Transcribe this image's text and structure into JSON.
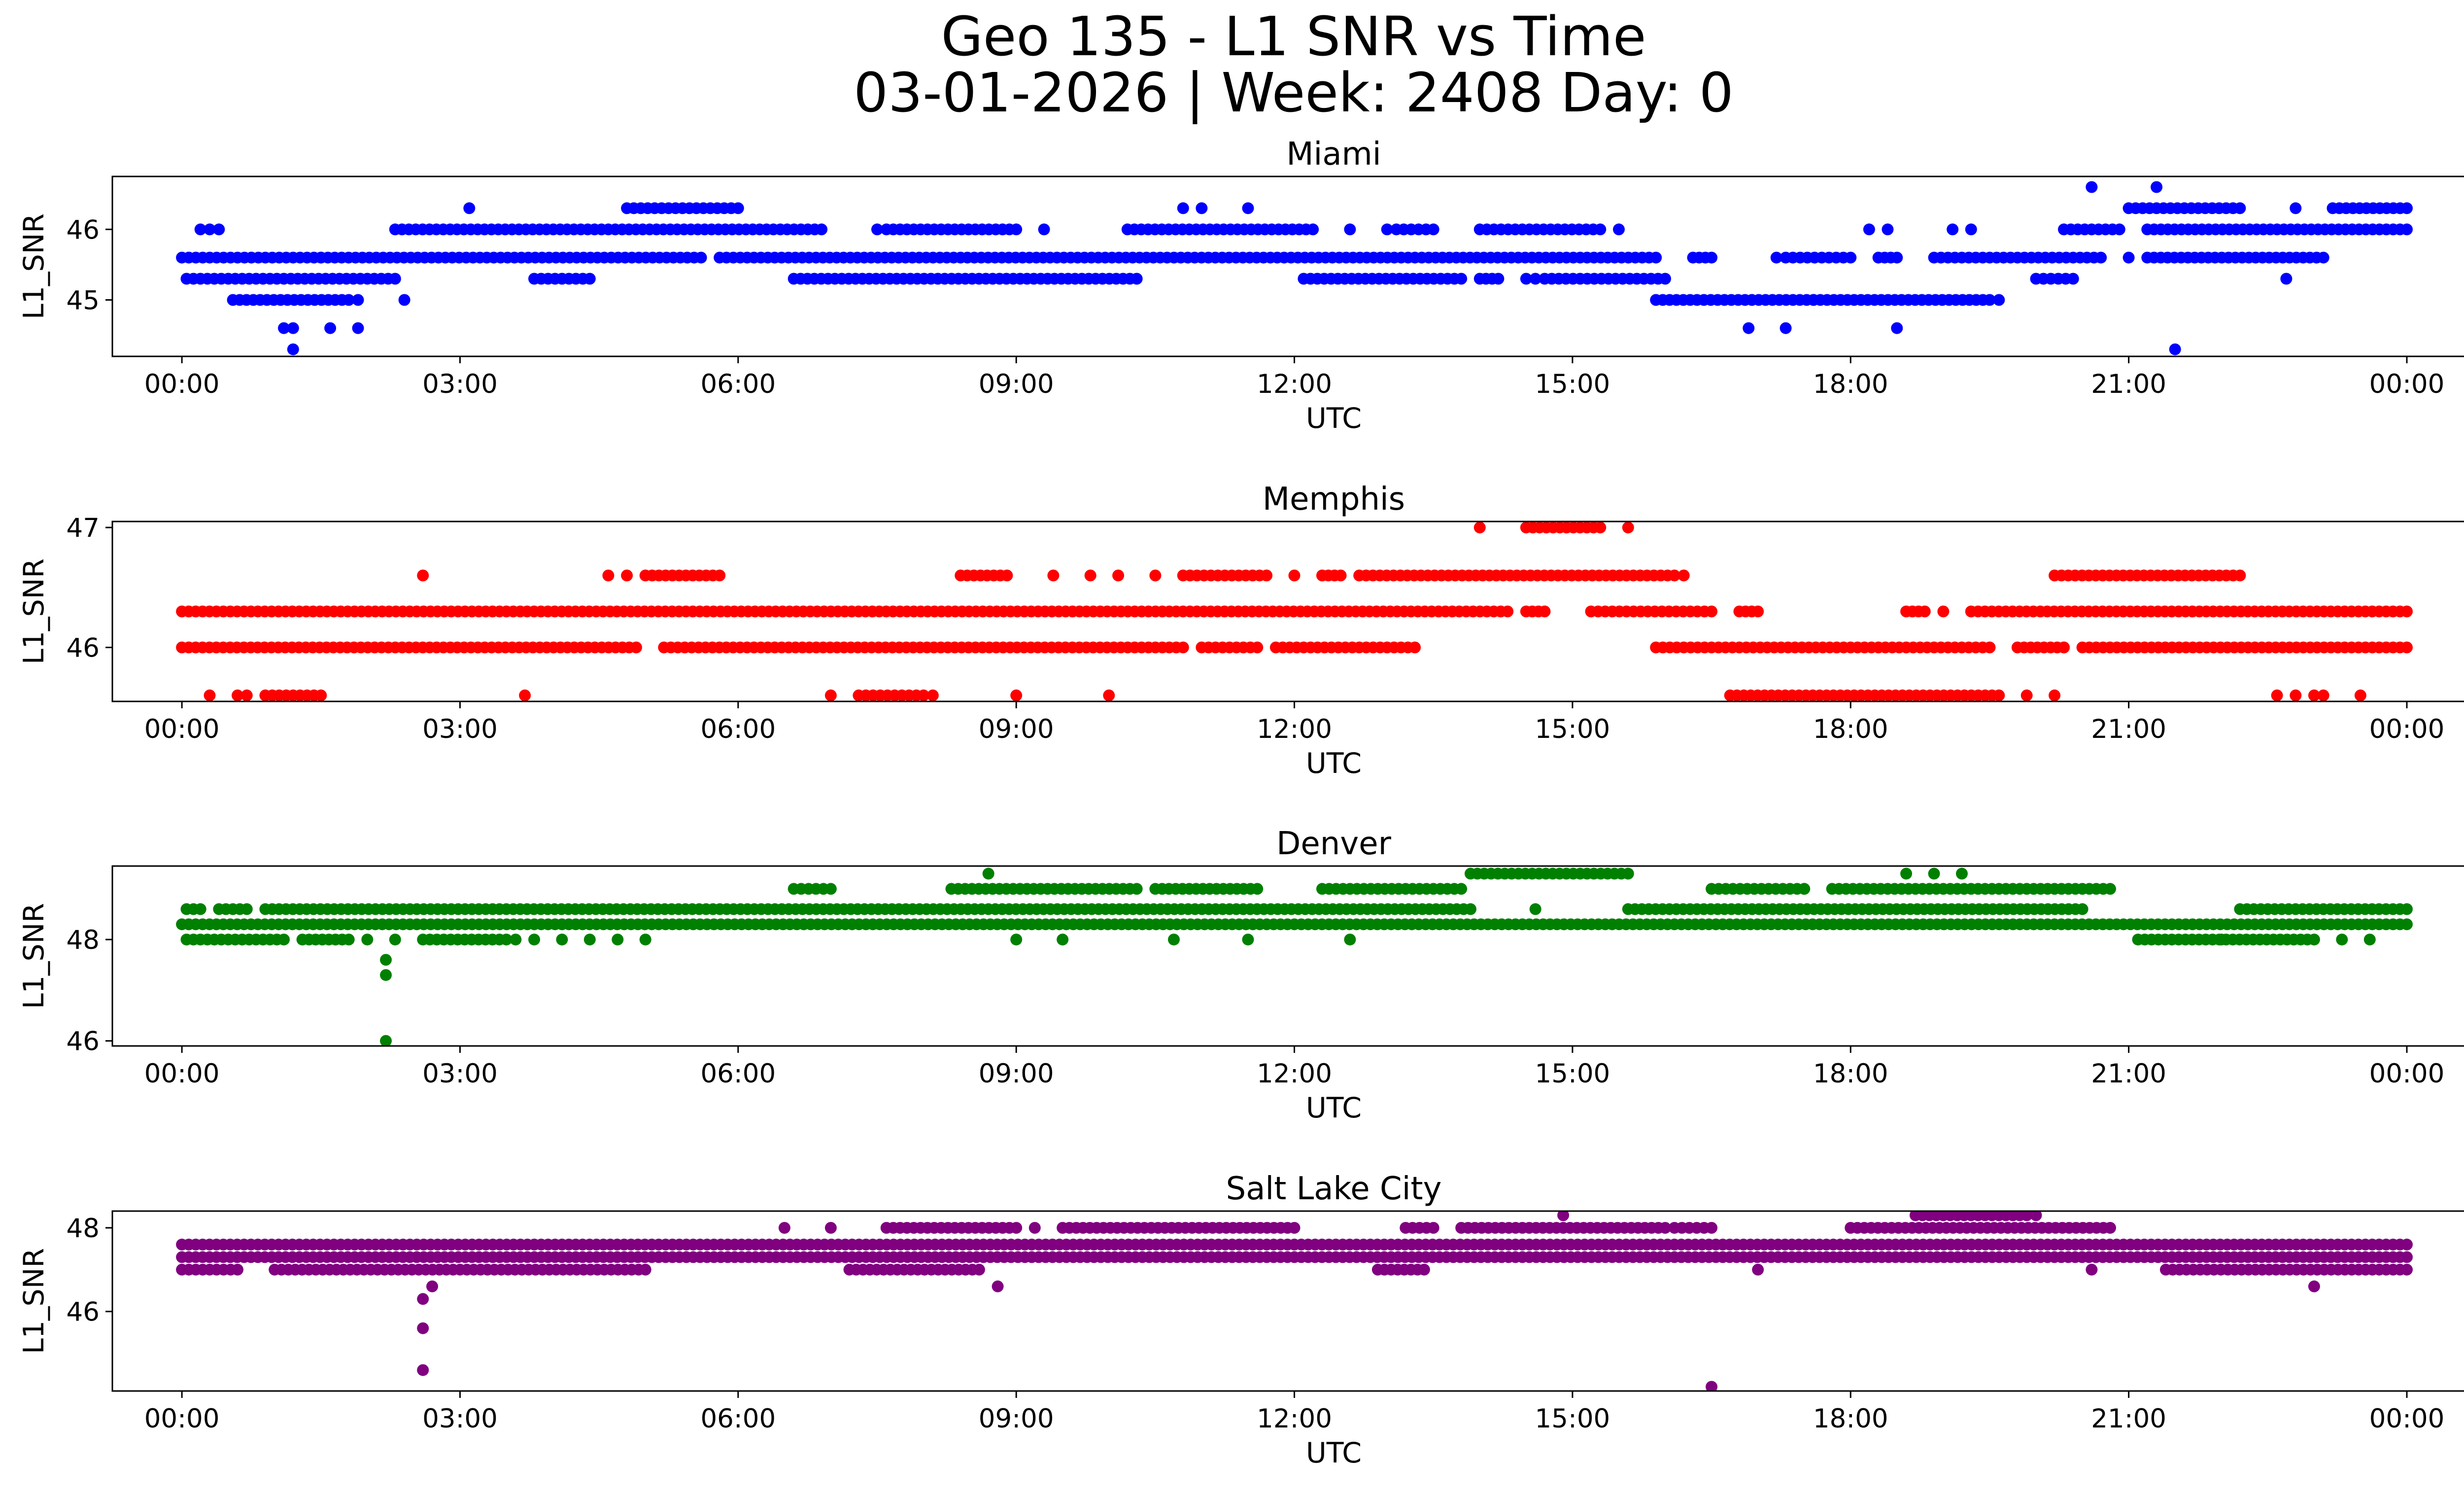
{
  "chart_data": {
    "type": "scatter",
    "title": [
      "Geo 135 - L1 SNR vs Time",
      "03-01-2026 | Week: 2408 Day: 0"
    ],
    "xlabel": "UTC",
    "ylabel": "L1_SNR",
    "x_unit": "hours UTC",
    "xlim": [
      -0.75,
      25.6
    ],
    "x_ticks": [
      0,
      3,
      6,
      9,
      12,
      15,
      18,
      21,
      24
    ],
    "x_ticklabels": [
      "00:00",
      "03:00",
      "06:00",
      "09:00",
      "12:00",
      "15:00",
      "18:00",
      "21:00",
      "00:00"
    ],
    "panels": [
      {
        "name": "Miami",
        "color": "#0000ff",
        "ylim": [
          44.2,
          46.75
        ],
        "y_ticks": [
          45,
          46
        ],
        "bands": [
          {
            "y": 45.6,
            "segments": [
              [
                0,
                1.5
              ],
              [
                1.5,
                5.6
              ],
              [
                5.8,
                15.9
              ],
              [
                16.3,
                16.5
              ],
              [
                17.3,
                18.0
              ],
              [
                18.3,
                18.5
              ],
              [
                18.9,
                20.7
              ],
              [
                21.2,
                23.1
              ]
            ]
          },
          {
            "y": 45.3,
            "segments": [
              [
                0.05,
                2.3
              ],
              [
                3.8,
                4.4
              ],
              [
                6.6,
                10.3
              ],
              [
                12.1,
                13.8
              ],
              [
                14.0,
                14.2
              ],
              [
                14.5,
                14.6
              ],
              [
                14.7,
                16.0
              ],
              [
                20.0,
                20.4
              ]
            ]
          },
          {
            "y": 46.0,
            "segments": [
              [
                2.3,
                6.9
              ],
              [
                7.6,
                9.0
              ],
              [
                10.2,
                12.2
              ],
              [
                13.1,
                13.5
              ],
              [
                14.0,
                15.3
              ],
              [
                20.3,
                20.9
              ],
              [
                21.2,
                24.0
              ]
            ]
          },
          {
            "y": 45.0,
            "segments": [
              [
                0.55,
                1.8
              ],
              [
                15.9,
                17.6
              ],
              [
                17.6,
                19.5
              ]
            ]
          },
          {
            "y": 46.3,
            "segments": [
              [
                4.8,
                6.0
              ],
              [
                21.0,
                22.2
              ],
              [
                23.2,
                24.0
              ]
            ]
          }
        ],
        "points": [
          [
            0.2,
            46.0
          ],
          [
            0.3,
            46.0
          ],
          [
            0.4,
            46.0
          ],
          [
            3.1,
            46.3
          ],
          [
            1.1,
            44.6
          ],
          [
            1.2,
            44.6
          ],
          [
            1.2,
            44.3
          ],
          [
            1.6,
            44.6
          ],
          [
            1.9,
            44.6
          ],
          [
            1.9,
            45.0
          ],
          [
            2.4,
            45.0
          ],
          [
            7.5,
            46.0
          ],
          [
            9.3,
            46.0
          ],
          [
            10.8,
            46.3
          ],
          [
            11.0,
            46.3
          ],
          [
            11.5,
            46.3
          ],
          [
            12.6,
            46.0
          ],
          [
            13.0,
            46.0
          ],
          [
            15.5,
            46.0
          ],
          [
            16.9,
            44.6
          ],
          [
            17.3,
            44.6
          ],
          [
            18.5,
            44.6
          ],
          [
            17.2,
            45.6
          ],
          [
            18.2,
            46.0
          ],
          [
            18.4,
            46.0
          ],
          [
            19.1,
            46.0
          ],
          [
            19.3,
            46.0
          ],
          [
            19.6,
            45.0
          ],
          [
            20.6,
            46.6
          ],
          [
            21.3,
            46.6
          ],
          [
            21.5,
            44.3
          ],
          [
            21.0,
            45.6
          ],
          [
            22.7,
            45.3
          ],
          [
            22.8,
            46.3
          ]
        ]
      },
      {
        "name": "Memphis",
        "color": "#ff0000",
        "ylim": [
          45.55,
          47.05
        ],
        "y_ticks": [
          46,
          47
        ],
        "bands": [
          {
            "y": 46.3,
            "segments": [
              [
                0,
                14.3
              ],
              [
                14.5,
                14.7
              ],
              [
                15.2,
                16.5
              ],
              [
                16.8,
                17.0
              ],
              [
                18.6,
                18.8
              ],
              [
                19.3,
                24.0
              ]
            ]
          },
          {
            "y": 46.0,
            "segments": [
              [
                0,
                4.9
              ],
              [
                5.2,
                10.8
              ],
              [
                11.0,
                11.6
              ],
              [
                11.8,
                13.3
              ],
              [
                15.9,
                19.5
              ],
              [
                19.8,
                20.3
              ],
              [
                20.5,
                24.0
              ]
            ]
          },
          {
            "y": 46.6,
            "segments": [
              [
                5.0,
                5.8
              ],
              [
                8.4,
                8.9
              ],
              [
                10.8,
                11.7
              ],
              [
                12.3,
                12.5
              ],
              [
                12.7,
                16.1
              ],
              [
                20.2,
                22.2
              ]
            ]
          },
          {
            "y": 45.6,
            "segments": [
              [
                16.7,
                19.6
              ],
              [
                7.3,
                8.0
              ],
              [
                0.9,
                1.5
              ]
            ]
          },
          {
            "y": 47.0,
            "segments": [
              [
                14.5,
                15.3
              ]
            ]
          }
        ],
        "points": [
          [
            0.3,
            45.6
          ],
          [
            0.6,
            45.6
          ],
          [
            0.7,
            45.6
          ],
          [
            2.6,
            46.6
          ],
          [
            3.7,
            45.6
          ],
          [
            4.6,
            46.6
          ],
          [
            4.8,
            46.6
          ],
          [
            7.0,
            45.6
          ],
          [
            8.1,
            45.6
          ],
          [
            9.0,
            45.6
          ],
          [
            10.0,
            45.6
          ],
          [
            9.4,
            46.6
          ],
          [
            9.8,
            46.6
          ],
          [
            10.1,
            46.6
          ],
          [
            10.5,
            46.6
          ],
          [
            12.0,
            46.6
          ],
          [
            14.0,
            47.0
          ],
          [
            15.6,
            47.0
          ],
          [
            16.2,
            46.6
          ],
          [
            19.9,
            45.6
          ],
          [
            20.2,
            45.6
          ],
          [
            22.6,
            45.6
          ],
          [
            22.8,
            45.6
          ],
          [
            23.0,
            45.6
          ],
          [
            23.1,
            45.6
          ],
          [
            23.5,
            45.6
          ],
          [
            20.3,
            46.0
          ],
          [
            19.0,
            46.3
          ]
        ]
      },
      {
        "name": "Denver",
        "color": "#008000",
        "ylim": [
          45.9,
          49.45
        ],
        "y_ticks": [
          46,
          48
        ],
        "bands": [
          {
            "y": 48.3,
            "segments": [
              [
                0,
                24.0
              ]
            ]
          },
          {
            "y": 48.6,
            "segments": [
              [
                0.9,
                13.9
              ],
              [
                15.6,
                20.5
              ],
              [
                0.05,
                0.2
              ],
              [
                0.4,
                0.7
              ],
              [
                22.2,
                24.0
              ]
            ]
          },
          {
            "y": 48.0,
            "segments": [
              [
                0.05,
                1.1
              ],
              [
                1.3,
                1.8
              ],
              [
                2.6,
                3.5
              ],
              [
                21.1,
                23.0
              ]
            ]
          },
          {
            "y": 49.0,
            "segments": [
              [
                8.3,
                10.3
              ],
              [
                10.5,
                11.6
              ],
              [
                12.3,
                13.8
              ],
              [
                16.5,
                17.5
              ],
              [
                17.8,
                20.8
              ],
              [
                6.6,
                7.0
              ]
            ]
          },
          {
            "y": 49.3,
            "segments": [
              [
                13.9,
                15.6
              ]
            ]
          }
        ],
        "points": [
          [
            2.2,
            47.6
          ],
          [
            2.2,
            47.3
          ],
          [
            2.2,
            46.0
          ],
          [
            2.0,
            48.0
          ],
          [
            2.3,
            48.0
          ],
          [
            3.6,
            48.0
          ],
          [
            3.8,
            48.0
          ],
          [
            4.1,
            48.0
          ],
          [
            4.4,
            48.0
          ],
          [
            4.7,
            48.0
          ],
          [
            5.0,
            48.0
          ],
          [
            8.7,
            49.3
          ],
          [
            9.0,
            48.0
          ],
          [
            9.5,
            48.0
          ],
          [
            10.7,
            48.0
          ],
          [
            11.5,
            48.0
          ],
          [
            12.6,
            48.0
          ],
          [
            14.6,
            48.6
          ],
          [
            17.5,
            49.0
          ],
          [
            18.6,
            49.3
          ],
          [
            18.9,
            49.3
          ],
          [
            19.2,
            49.3
          ],
          [
            23.3,
            48.0
          ],
          [
            23.6,
            48.0
          ],
          [
            22.0,
            48.0
          ]
        ]
      },
      {
        "name": "Salt Lake City",
        "color": "#800080",
        "ylim": [
          44.1,
          48.4
        ],
        "y_ticks": [
          46,
          48
        ],
        "bands": [
          {
            "y": 47.3,
            "segments": [
              [
                0,
                24.0
              ]
            ]
          },
          {
            "y": 47.6,
            "segments": [
              [
                0,
                24.0
              ]
            ]
          },
          {
            "y": 47.0,
            "segments": [
              [
                0,
                0.6
              ],
              [
                1.0,
                5.0
              ],
              [
                7.2,
                8.6
              ],
              [
                12.9,
                13.4
              ],
              [
                21.4,
                24.0
              ]
            ]
          },
          {
            "y": 48.0,
            "segments": [
              [
                7.6,
                9.0
              ],
              [
                9.5,
                12.0
              ],
              [
                13.2,
                13.5
              ],
              [
                13.8,
                16.0
              ],
              [
                18.0,
                20.8
              ],
              [
                16.1,
                16.5
              ]
            ]
          },
          {
            "y": 48.3,
            "segments": [
              [
                18.7,
                19.9
              ]
            ]
          }
        ],
        "points": [
          [
            2.7,
            46.6
          ],
          [
            2.6,
            46.3
          ],
          [
            2.6,
            45.6
          ],
          [
            2.6,
            44.6
          ],
          [
            16.5,
            44.2
          ],
          [
            6.5,
            48.0
          ],
          [
            7.0,
            48.0
          ],
          [
            8.8,
            46.6
          ],
          [
            9.2,
            48.0
          ],
          [
            14.9,
            48.3
          ],
          [
            17.0,
            47.0
          ],
          [
            20.6,
            47.0
          ],
          [
            23.0,
            46.6
          ],
          [
            20.0,
            48.3
          ]
        ]
      }
    ]
  }
}
